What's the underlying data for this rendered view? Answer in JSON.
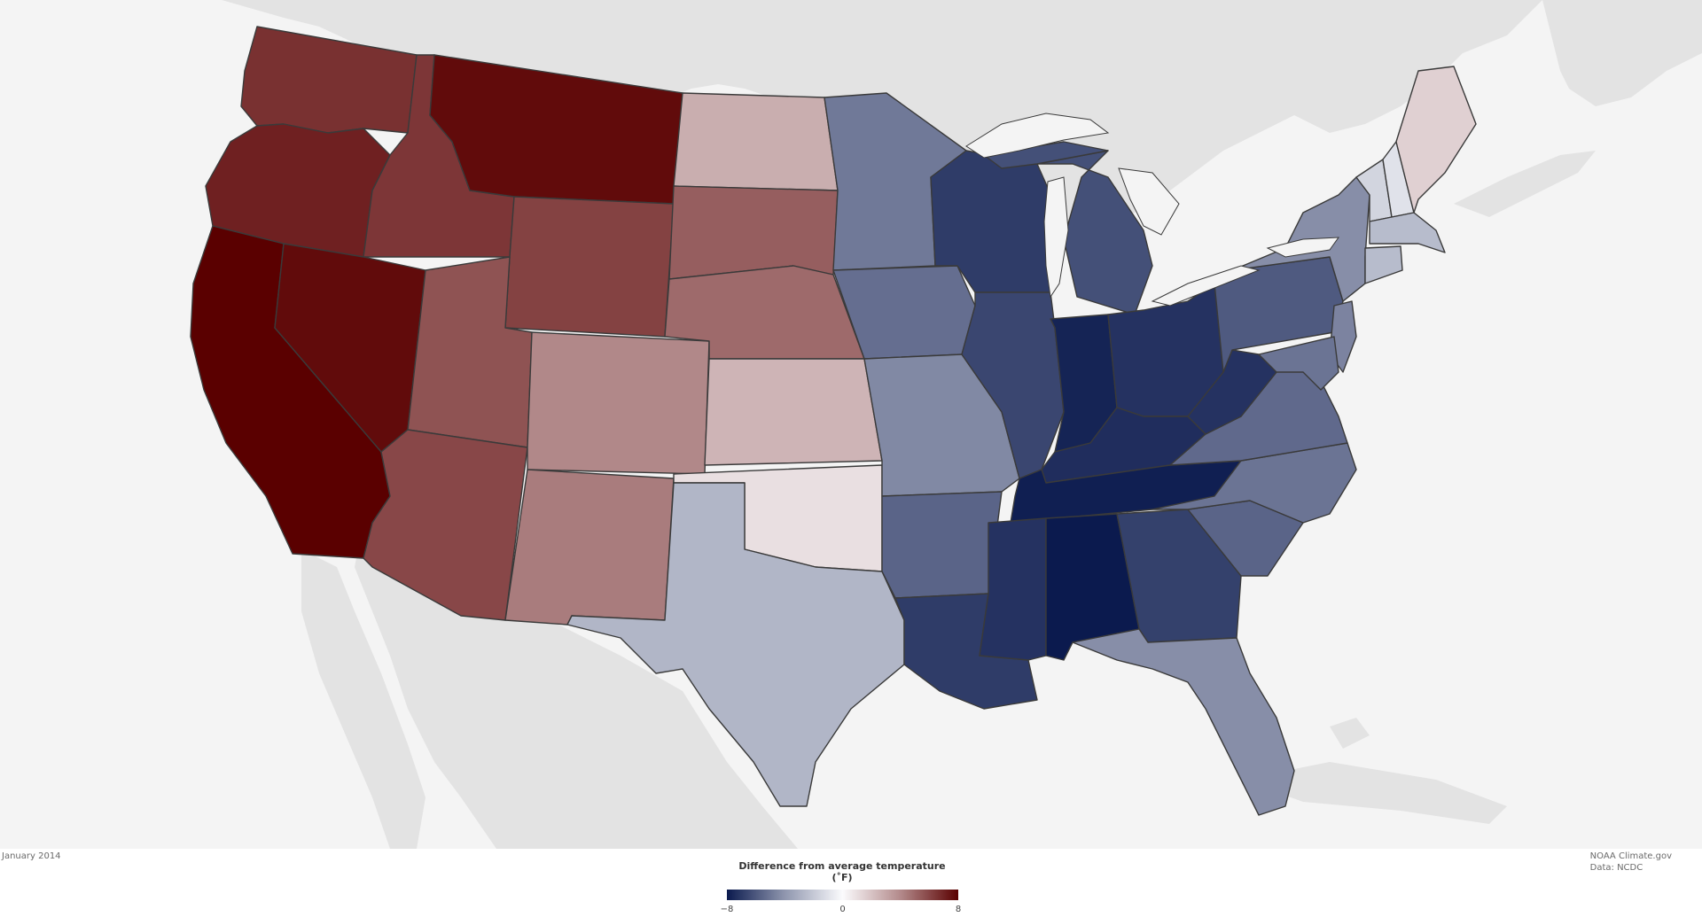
{
  "map": {
    "date_label": "January 2014",
    "credit": "NOAA Climate.gov",
    "source": "Data: NCDC"
  },
  "legend": {
    "title": "Difference from average temperature (˚F)",
    "min_label": "−8",
    "mid_label": "0",
    "max_label": "8",
    "min": -8,
    "max": 8
  },
  "colors": {
    "ocean": "#f4f4f4",
    "land": "#e3e3e3",
    "lake": "#f4f4f4",
    "boundary": "#3a3a3a",
    "cold_extreme": "#0b1a4e",
    "neutral": "#fbfbfd",
    "warm_extreme": "#5a0000"
  },
  "states": [
    {
      "name": "Washington",
      "anomaly": 6.2
    },
    {
      "name": "Oregon",
      "anomaly": 6.8
    },
    {
      "name": "California",
      "anomaly": 8.0
    },
    {
      "name": "Idaho",
      "anomaly": 6.0
    },
    {
      "name": "Nevada",
      "anomaly": 7.6
    },
    {
      "name": "Montana",
      "anomaly": 7.6
    },
    {
      "name": "Wyoming",
      "anomaly": 5.6
    },
    {
      "name": "Utah",
      "anomaly": 5.0
    },
    {
      "name": "Arizona",
      "anomaly": 5.4
    },
    {
      "name": "Colorado",
      "anomaly": 3.2
    },
    {
      "name": "New Mexico",
      "anomaly": 3.6
    },
    {
      "name": "North Dakota",
      "anomaly": 2.0
    },
    {
      "name": "South Dakota",
      "anomaly": 4.6
    },
    {
      "name": "Nebraska",
      "anomaly": 4.2
    },
    {
      "name": "Kansas",
      "anomaly": 1.8
    },
    {
      "name": "Oklahoma",
      "anomaly": 0.6
    },
    {
      "name": "Texas",
      "anomaly": -2.0
    },
    {
      "name": "Minnesota",
      "anomaly": -4.2
    },
    {
      "name": "Iowa",
      "anomaly": -4.6
    },
    {
      "name": "Missouri",
      "anomaly": -3.6
    },
    {
      "name": "Arkansas",
      "anomaly": -5.0
    },
    {
      "name": "Louisiana",
      "anomaly": -6.6
    },
    {
      "name": "Wisconsin",
      "anomaly": -6.6
    },
    {
      "name": "Illinois",
      "anomaly": -6.2
    },
    {
      "name": "Michigan",
      "anomaly": -5.8
    },
    {
      "name": "Indiana",
      "anomaly": -7.6
    },
    {
      "name": "Ohio",
      "anomaly": -7.0
    },
    {
      "name": "Kentucky",
      "anomaly": -7.2
    },
    {
      "name": "Tennessee",
      "anomaly": -7.8
    },
    {
      "name": "Mississippi",
      "anomaly": -7.0
    },
    {
      "name": "Alabama",
      "anomaly": -8.0
    },
    {
      "name": "Georgia",
      "anomaly": -6.4
    },
    {
      "name": "Florida",
      "anomaly": -3.4
    },
    {
      "name": "South Carolina",
      "anomaly": -5.0
    },
    {
      "name": "North Carolina",
      "anomaly": -4.4
    },
    {
      "name": "Virginia",
      "anomaly": -4.8
    },
    {
      "name": "West Virginia",
      "anomaly": -7.0
    },
    {
      "name": "Pennsylvania",
      "anomaly": -5.4
    },
    {
      "name": "New York",
      "anomaly": -3.4
    },
    {
      "name": "Maryland",
      "anomaly": -4.4
    },
    {
      "name": "New Jersey",
      "anomaly": -3.8
    },
    {
      "name": "Vermont",
      "anomaly": -1.0
    },
    {
      "name": "New Hampshire",
      "anomaly": -0.6
    },
    {
      "name": "Maine",
      "anomaly": 1.0
    },
    {
      "name": "Massachusetts",
      "anomaly": -1.8
    }
  ]
}
